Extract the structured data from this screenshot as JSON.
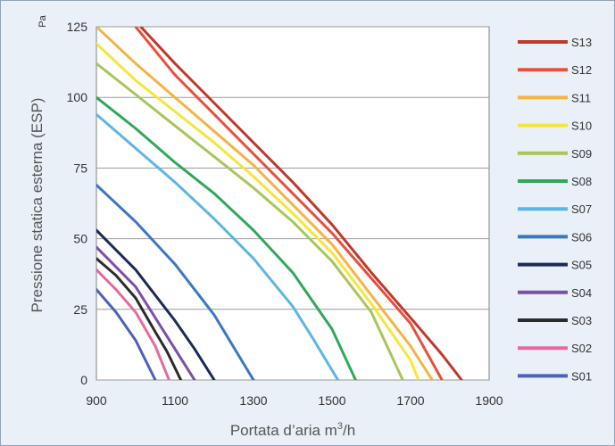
{
  "chart_data": {
    "type": "line",
    "xlabel_main": "Portata d’aria m",
    "xlabel_sup": "3",
    "xlabel_tail": "/h",
    "ylabel": "Pressione statica esterna (ESP)",
    "y_unit": "Pa",
    "xlim": [
      900,
      1900
    ],
    "ylim": [
      0,
      125
    ],
    "x_ticks": [
      "900",
      "1100",
      "1300",
      "1500",
      "1700",
      "1900"
    ],
    "y_ticks": [
      "0",
      "25",
      "50",
      "75",
      "100",
      "125"
    ],
    "grid": "horizontal",
    "legend_position": "right",
    "series": [
      {
        "name": "S13",
        "color": "#c0392b",
        "points": [
          [
            1013,
            125
          ],
          [
            1100,
            112
          ],
          [
            1200,
            98
          ],
          [
            1300,
            84
          ],
          [
            1400,
            70
          ],
          [
            1500,
            55
          ],
          [
            1600,
            38
          ],
          [
            1700,
            22
          ],
          [
            1780,
            9
          ],
          [
            1830,
            0
          ]
        ]
      },
      {
        "name": "S12",
        "color": "#e94f3d",
        "points": [
          [
            1000,
            125
          ],
          [
            1100,
            108
          ],
          [
            1200,
            94
          ],
          [
            1300,
            80
          ],
          [
            1400,
            66
          ],
          [
            1500,
            52
          ],
          [
            1600,
            36
          ],
          [
            1700,
            20
          ],
          [
            1780,
            0
          ]
        ]
      },
      {
        "name": "S11",
        "color": "#f5b342",
        "points": [
          [
            900,
            125
          ],
          [
            1000,
            112
          ],
          [
            1100,
            100
          ],
          [
            1200,
            88
          ],
          [
            1300,
            76
          ],
          [
            1400,
            62
          ],
          [
            1500,
            48
          ],
          [
            1600,
            30
          ],
          [
            1700,
            12
          ],
          [
            1755,
            0
          ]
        ]
      },
      {
        "name": "S10",
        "color": "#f4e63a",
        "points": [
          [
            900,
            119
          ],
          [
            1000,
            106
          ],
          [
            1100,
            95
          ],
          [
            1200,
            84
          ],
          [
            1300,
            72
          ],
          [
            1400,
            59
          ],
          [
            1500,
            45
          ],
          [
            1600,
            27
          ],
          [
            1700,
            7
          ],
          [
            1720,
            0
          ]
        ]
      },
      {
        "name": "S09",
        "color": "#a8c65a",
        "points": [
          [
            900,
            112
          ],
          [
            1000,
            101
          ],
          [
            1100,
            90
          ],
          [
            1200,
            79
          ],
          [
            1300,
            68
          ],
          [
            1400,
            56
          ],
          [
            1500,
            42
          ],
          [
            1600,
            24
          ],
          [
            1680,
            0
          ]
        ]
      },
      {
        "name": "S08",
        "color": "#2fa85a",
        "points": [
          [
            900,
            100
          ],
          [
            1000,
            89
          ],
          [
            1100,
            77
          ],
          [
            1200,
            66
          ],
          [
            1300,
            53
          ],
          [
            1400,
            38
          ],
          [
            1500,
            18
          ],
          [
            1560,
            0
          ]
        ]
      },
      {
        "name": "S07",
        "color": "#5bb6e6",
        "points": [
          [
            900,
            94
          ],
          [
            1000,
            82
          ],
          [
            1100,
            70
          ],
          [
            1200,
            57
          ],
          [
            1300,
            43
          ],
          [
            1400,
            26
          ],
          [
            1450,
            15
          ],
          [
            1515,
            0
          ]
        ]
      },
      {
        "name": "S06",
        "color": "#3a78c2",
        "points": [
          [
            900,
            69
          ],
          [
            1000,
            56
          ],
          [
            1100,
            41
          ],
          [
            1200,
            23
          ],
          [
            1300,
            0
          ]
        ]
      },
      {
        "name": "S05",
        "color": "#1b2a5a",
        "points": [
          [
            900,
            53
          ],
          [
            1000,
            39
          ],
          [
            1100,
            21
          ],
          [
            1150,
            11
          ],
          [
            1200,
            0
          ]
        ]
      },
      {
        "name": "S04",
        "color": "#7b4fa8",
        "points": [
          [
            900,
            47
          ],
          [
            950,
            40
          ],
          [
            1000,
            33
          ],
          [
            1050,
            22
          ],
          [
            1100,
            11
          ],
          [
            1150,
            0
          ]
        ]
      },
      {
        "name": "S03",
        "color": "#2b2b2b",
        "points": [
          [
            900,
            43
          ],
          [
            950,
            37
          ],
          [
            1000,
            29
          ],
          [
            1050,
            17
          ],
          [
            1080,
            10
          ],
          [
            1115,
            0
          ]
        ]
      },
      {
        "name": "S02",
        "color": "#e46aa0",
        "points": [
          [
            900,
            39
          ],
          [
            950,
            32
          ],
          [
            1000,
            24
          ],
          [
            1050,
            12
          ],
          [
            1085,
            0
          ]
        ]
      },
      {
        "name": "S01",
        "color": "#4b62b8",
        "points": [
          [
            900,
            32
          ],
          [
            950,
            24
          ],
          [
            1000,
            14
          ],
          [
            1050,
            0
          ]
        ]
      }
    ]
  }
}
